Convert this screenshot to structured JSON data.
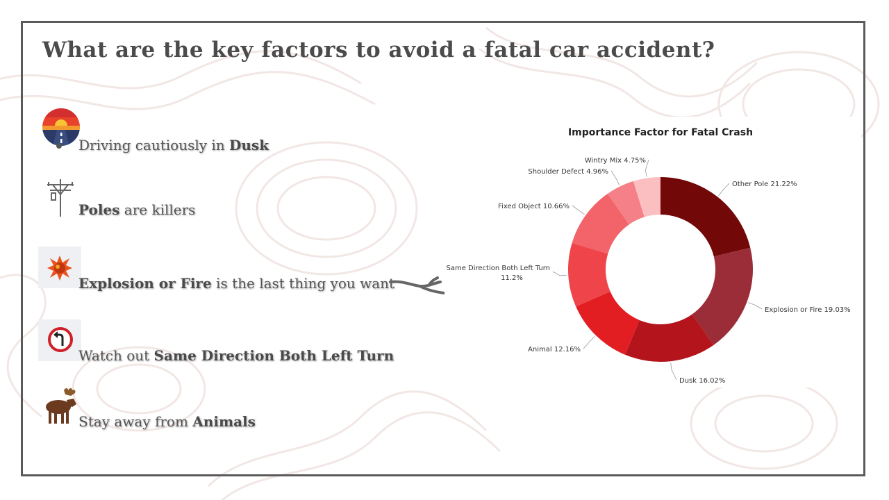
{
  "slide": {
    "title": "What are the key factors to avoid a fatal car accident?"
  },
  "bullets": [
    {
      "pre": "Driving cautiously  in ",
      "bold": "Dusk",
      "post": "",
      "icon": "dusk-road-icon"
    },
    {
      "pre": "",
      "bold": "Poles",
      "post": " are killers",
      "icon": "power-pole-icon"
    },
    {
      "pre": "",
      "bold": "Explosion or Fire",
      "post": " is the last thing you want",
      "icon": "explosion-icon"
    },
    {
      "pre": "Watch out  ",
      "bold": "Same Direction Both Left Turn",
      "post": "",
      "icon": "left-turn-sign-icon"
    },
    {
      "pre": "Stay away from ",
      "bold": "Animals",
      "post": "",
      "icon": "moose-icon"
    }
  ],
  "chart_data": {
    "type": "pie",
    "donut": true,
    "title": "Importance Factor for Fatal Crash",
    "slices": [
      {
        "label": "Other Pole",
        "value": 21.22,
        "text": "Other Pole 21.22%",
        "color": "#720808"
      },
      {
        "label": "Explosion or Fire",
        "value": 19.03,
        "text": "Explosion or Fire 19.03%",
        "color": "#9b2d38"
      },
      {
        "label": "Dusk",
        "value": 16.02,
        "text": "Dusk 16.02%",
        "color": "#b4141b"
      },
      {
        "label": "Animal",
        "value": 12.16,
        "text": "Animal 12.16%",
        "color": "#e21e23"
      },
      {
        "label": "Same Direction Both Left Turn",
        "value": 11.2,
        "text": "Same Direction Both Left Turn\n11.2%",
        "color": "#ee444a"
      },
      {
        "label": "Fixed Object",
        "value": 10.66,
        "text": "Fixed Object 10.66%",
        "color": "#f2636a"
      },
      {
        "label": "Shoulder Defect",
        "value": 4.96,
        "text": "Shoulder Defect 4.96%",
        "color": "#f58087"
      },
      {
        "label": "Wintry Mix",
        "value": 4.75,
        "text": "Wintry Mix 4.75%",
        "color": "#fbbfc2"
      }
    ],
    "legend": "none"
  }
}
